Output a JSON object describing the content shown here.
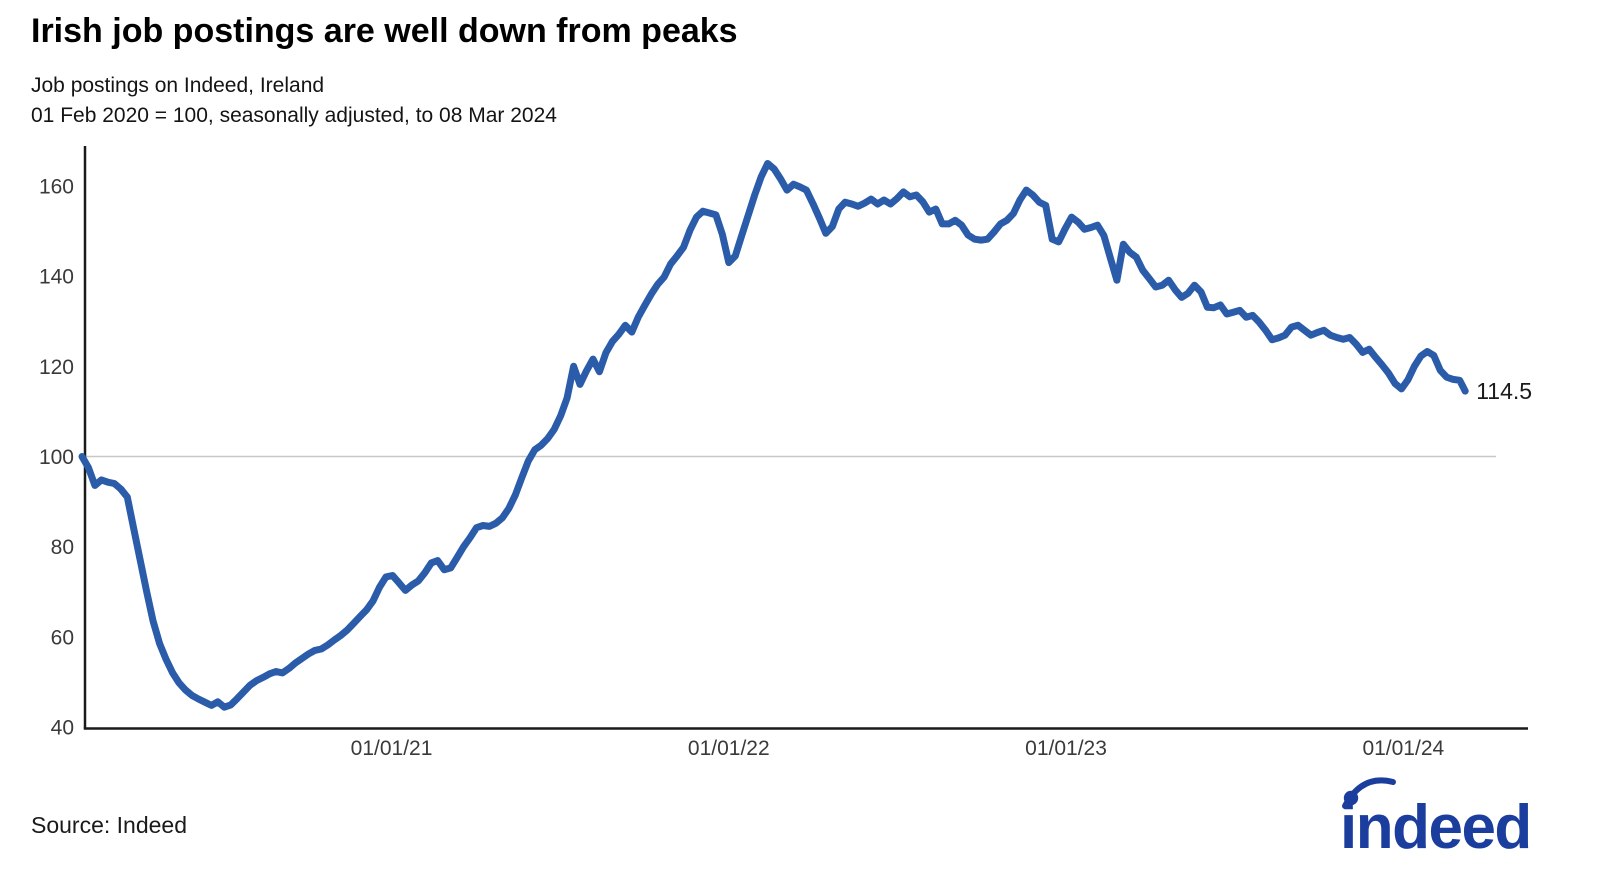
{
  "header": {
    "title": "Irish job postings are well down from peaks",
    "subtitle_line1": "Job postings on Indeed, Ireland",
    "subtitle_line2": "01 Feb 2020 = 100, seasonally adjusted, to 08 Mar 2024"
  },
  "footer": {
    "source": "Source: Indeed",
    "logo_text": "indeed"
  },
  "colors": {
    "line": "#2b5caa",
    "logo": "#1b3e9e",
    "axis": "#1a1a1a",
    "grid": "#c8c8c8",
    "tick_text": "#3a3a3a",
    "end_label_text": "#1a1a1a"
  },
  "chart_data": {
    "type": "line",
    "title": "Irish job postings are well down from peaks",
    "subtitle": "Job postings on Indeed, Ireland, 01 Feb 2020 = 100, seasonally adjusted, to 08 Mar 2024",
    "series_name": "Job postings on Indeed, Ireland (01 Feb 2020 = 100, seasonally adjusted)",
    "frequency": "weekly",
    "start_date": "2020-02-01",
    "end_date": "2024-03-08",
    "end_label": "114.5",
    "last_value": 114.5,
    "ylim": [
      40,
      168
    ],
    "grid": "horizontal-at-100-only",
    "legend": "none",
    "reference_lines": [
      100
    ],
    "y_ticks": [
      40,
      60,
      80,
      100,
      120,
      140,
      160
    ],
    "x_ticks": [
      {
        "label": "01/01/21",
        "date": "2021-01-01"
      },
      {
        "label": "01/01/22",
        "date": "2022-01-01"
      },
      {
        "label": "01/01/23",
        "date": "2023-01-01"
      },
      {
        "label": "01/01/24",
        "date": "2024-01-01"
      }
    ],
    "values": [
      100,
      97.5,
      93.6,
      94.8,
      94.3,
      94,
      92.8,
      91,
      84,
      77,
      70,
      63.5,
      58.5,
      55,
      52,
      49.8,
      48.2,
      47,
      46.2,
      45.5,
      44.8,
      45.6,
      44.4,
      44.9,
      46.3,
      47.8,
      49.3,
      50.3,
      51,
      51.8,
      52.3,
      52,
      53,
      54.2,
      55.2,
      56.2,
      57,
      57.3,
      58.2,
      59.3,
      60.3,
      61.5,
      63,
      64.5,
      66,
      68,
      71,
      73.3,
      73.6,
      72,
      70.3,
      71.5,
      72.4,
      74.2,
      76.4,
      76.9,
      74.9,
      75.3,
      77.6,
      80,
      82,
      84.2,
      84.7,
      84.5,
      85.2,
      86.4,
      88.5,
      91.5,
      95.3,
      99,
      101.5,
      102.5,
      104,
      106,
      109,
      113,
      120,
      116,
      119,
      121.6,
      118.8,
      123,
      125.5,
      127.1,
      129.1,
      127.6,
      130.9,
      133.5,
      136,
      138.2,
      139.8,
      142.7,
      144.5,
      146.4,
      150.2,
      153.1,
      154.4,
      154,
      153.6,
      149.3,
      143,
      144.5,
      149,
      153.5,
      158,
      162,
      165,
      163.8,
      161.6,
      159.1,
      160.4,
      159.8,
      159.1,
      156.1,
      152.9,
      149.5,
      151,
      154.9,
      156.4,
      156,
      155.5,
      156.2,
      157.1,
      156,
      156.9,
      156,
      157.2,
      158.7,
      157.6,
      158,
      156.5,
      154.2,
      154.9,
      151.6,
      151.6,
      152.4,
      151.3,
      149.1,
      148.2,
      148,
      148.2,
      149.8,
      151.6,
      152.4,
      153.9,
      156.9,
      159.1,
      158,
      156.4,
      155.7,
      148.2,
      147.6,
      150.5,
      153.1,
      152,
      150.4,
      150.8,
      151.3,
      149,
      144,
      139.1,
      147.1,
      145.3,
      144.2,
      141.3,
      139.5,
      137.6,
      138,
      139.1,
      137,
      135.3,
      136.2,
      138,
      136.5,
      133.1,
      133,
      133.6,
      131.6,
      132,
      132.4,
      130.9,
      131.3,
      129.8,
      128,
      125.9,
      126.3,
      126.9,
      128.7,
      129.1,
      128,
      126.9,
      127.5,
      128,
      126.9,
      126.4,
      126,
      126.4,
      124.9,
      123.1,
      123.8,
      122,
      120.3,
      118.5,
      116.2,
      115,
      117,
      120,
      122.3,
      123.3,
      122.4,
      119.1,
      117.6,
      117.1,
      116.9,
      114.5
    ]
  }
}
